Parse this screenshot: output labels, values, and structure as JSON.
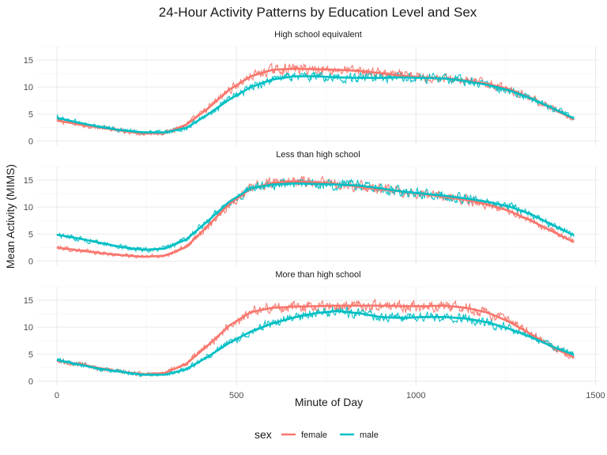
{
  "chart_data": {
    "type": "line",
    "title": "24-Hour Activity Patterns by Education Level and Sex",
    "xlabel": "Minute of Day",
    "ylabel": "Mean Activity (MIMS)",
    "xlim": [
      0,
      1440
    ],
    "ylim": [
      0,
      17
    ],
    "x_ticks": [
      0,
      500,
      1000,
      1500
    ],
    "y_ticks": [
      0,
      5,
      10,
      15
    ],
    "grid": true,
    "legend": {
      "title": "sex",
      "position": "bottom",
      "entries": [
        {
          "label": "female",
          "color": "#F8766D"
        },
        {
          "label": "male",
          "color": "#00BFC4"
        }
      ]
    },
    "series_style": "raw per-minute means (thin) with smooth trend (thick)",
    "x": [
      0,
      60,
      120,
      180,
      240,
      300,
      360,
      420,
      480,
      540,
      600,
      660,
      720,
      780,
      840,
      900,
      960,
      1020,
      1080,
      1140,
      1200,
      1260,
      1320,
      1380,
      1440
    ],
    "panels": [
      {
        "label": "High school equivalent",
        "series": [
          {
            "name": "female",
            "values": [
              3.8,
              3.1,
              2.5,
              1.9,
              1.4,
              1.5,
              3.0,
              6.0,
              9.5,
              12.0,
              13.2,
              13.4,
              13.3,
              13.2,
              13.0,
              12.6,
              12.1,
              11.8,
              11.6,
              11.2,
              10.6,
              9.6,
              8.0,
              6.0,
              4.0
            ]
          },
          {
            "name": "male",
            "values": [
              4.3,
              3.4,
              2.6,
              2.0,
              1.6,
              1.6,
              2.4,
              4.9,
              7.7,
              10.0,
              11.4,
              12.0,
              12.0,
              11.8,
              11.7,
              11.7,
              11.8,
              11.7,
              11.6,
              11.1,
              10.4,
              9.4,
              7.9,
              6.1,
              4.2
            ]
          }
        ]
      },
      {
        "label": "Less than high school",
        "series": [
          {
            "name": "female",
            "values": [
              2.5,
              2.0,
              1.5,
              1.1,
              0.8,
              1.0,
              2.6,
              6.5,
              10.6,
              13.4,
              14.5,
              14.8,
              14.6,
              14.3,
              13.8,
              13.3,
              12.9,
              12.4,
              11.9,
              11.3,
              10.5,
              9.3,
              7.5,
              5.5,
              3.5
            ]
          },
          {
            "name": "male",
            "values": [
              4.9,
              4.2,
              3.4,
              2.6,
              2.1,
              2.3,
              4.0,
              7.4,
              11.0,
              13.5,
              14.2,
              14.4,
              14.3,
              14.2,
              14.0,
              13.5,
              12.9,
              12.5,
              12.1,
              11.6,
              11.0,
              10.1,
              8.7,
              6.7,
              4.8
            ]
          }
        ]
      },
      {
        "label": "More than high school",
        "series": [
          {
            "name": "female",
            "values": [
              3.8,
              3.2,
              2.4,
              1.7,
              1.3,
              1.5,
              3.2,
              6.6,
              10.3,
              12.8,
              13.6,
              13.8,
              13.9,
              14.0,
              14.0,
              14.0,
              13.9,
              13.9,
              14.0,
              13.6,
              12.7,
              11.0,
              8.7,
              6.3,
              4.4
            ]
          },
          {
            "name": "male",
            "values": [
              3.9,
              3.1,
              2.3,
              1.7,
              1.2,
              1.2,
              2.2,
              4.5,
              7.1,
              9.2,
              10.7,
              11.8,
              12.6,
              13.0,
              12.6,
              11.9,
              11.7,
              11.9,
              11.9,
              11.6,
              10.9,
              9.7,
              8.2,
              6.4,
              4.9
            ]
          }
        ]
      }
    ]
  }
}
